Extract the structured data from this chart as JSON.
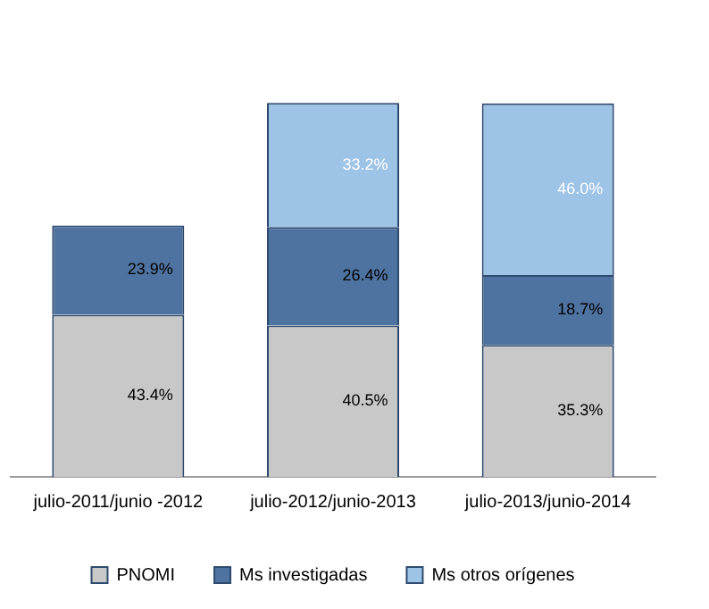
{
  "chart_data": {
    "type": "bar",
    "stacked": true,
    "legend": "bottom",
    "categories": [
      "julio-2011/junio -2012",
      "julio-2012/junio-2013",
      "julio-2013/junio-2014"
    ],
    "series": [
      {
        "name": "PNOMI",
        "color": "#c8c8c8",
        "values": [
          43.4,
          40.5,
          35.3
        ],
        "value_labels": [
          "43.4%",
          "40.5%",
          "35.3%"
        ]
      },
      {
        "name": "Ms investigadas",
        "color": "#4f73a0",
        "values": [
          23.9,
          26.4,
          18.7
        ],
        "value_labels": [
          "23.9%",
          "26.4%",
          "18.7%"
        ]
      },
      {
        "name": "Ms otros orígenes",
        "color": "#9dc3e6",
        "values": [
          null,
          33.2,
          46.0
        ],
        "value_labels": [
          null,
          "33.2%",
          "46.0%"
        ]
      }
    ]
  }
}
